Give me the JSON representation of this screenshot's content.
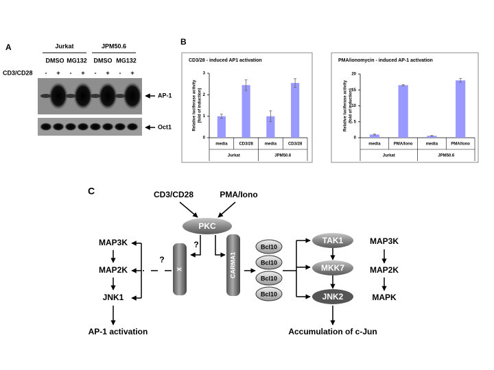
{
  "panel_a": {
    "label": "A",
    "groups": [
      "Jurkat",
      "JPM50.6"
    ],
    "treatments": [
      "DMSO",
      "MG132",
      "DMSO",
      "MG132"
    ],
    "stimulus": "CD3/CD28",
    "lanes": [
      "-",
      "+",
      "-",
      "+",
      "-",
      "+",
      "-",
      "+"
    ],
    "bands": [
      "AP-1",
      "Oct1"
    ]
  },
  "panel_b": {
    "label": "B"
  },
  "chart_data": [
    {
      "type": "bar",
      "title": "CD3/28 - induced AP1 activation",
      "ylabel": [
        "Relative luciferase activity",
        "(fold of induction)"
      ],
      "categories": [
        "media",
        "CD3/28",
        "media",
        "CD3/28"
      ],
      "group_labels": [
        "Jurkat",
        "JPM50.6"
      ],
      "values": [
        1.0,
        2.45,
        1.0,
        2.55
      ],
      "errors": [
        0.1,
        0.25,
        0.25,
        0.2
      ],
      "color": "#9999ff",
      "ylim": [
        0,
        3
      ],
      "yticks": [
        0,
        1,
        2,
        3
      ]
    },
    {
      "type": "bar",
      "title": "PMA/ionomycin - induced AP-1 activation",
      "ylabel": [
        "Relative luciferase activity",
        "(fold of induction)"
      ],
      "categories": [
        "media",
        "PMA/Iono",
        "media",
        "PMA/Iono"
      ],
      "group_labels": [
        "Jurkat",
        "JPM50.6"
      ],
      "values": [
        1.0,
        16.5,
        0.6,
        18.0
      ],
      "errors": [
        0.15,
        0.2,
        0.1,
        0.6
      ],
      "color": "#9999ff",
      "ylim": [
        0,
        20
      ],
      "yticks": [
        0,
        5,
        10,
        15,
        20
      ]
    }
  ],
  "panel_c": {
    "label": "C",
    "stimuli": [
      "CD3/CD28",
      "PMA/Iono"
    ],
    "pkc": "PKC",
    "left_cascade": [
      "MAP3K",
      "MAP2K",
      "JNK1"
    ],
    "left_output": "AP-1 activation",
    "questions": [
      "?",
      "?"
    ],
    "x": "X",
    "carma": "CARMA1",
    "bcl10": [
      "Bcl10",
      "Bcl10",
      "Bcl10",
      "Bcl10"
    ],
    "kinases": [
      "TAK1",
      "MKK7",
      "JNK2"
    ],
    "levels": [
      "MAP3K",
      "MAP2K",
      "MAPK"
    ],
    "right_output": "Accumulation of c-Jun"
  }
}
